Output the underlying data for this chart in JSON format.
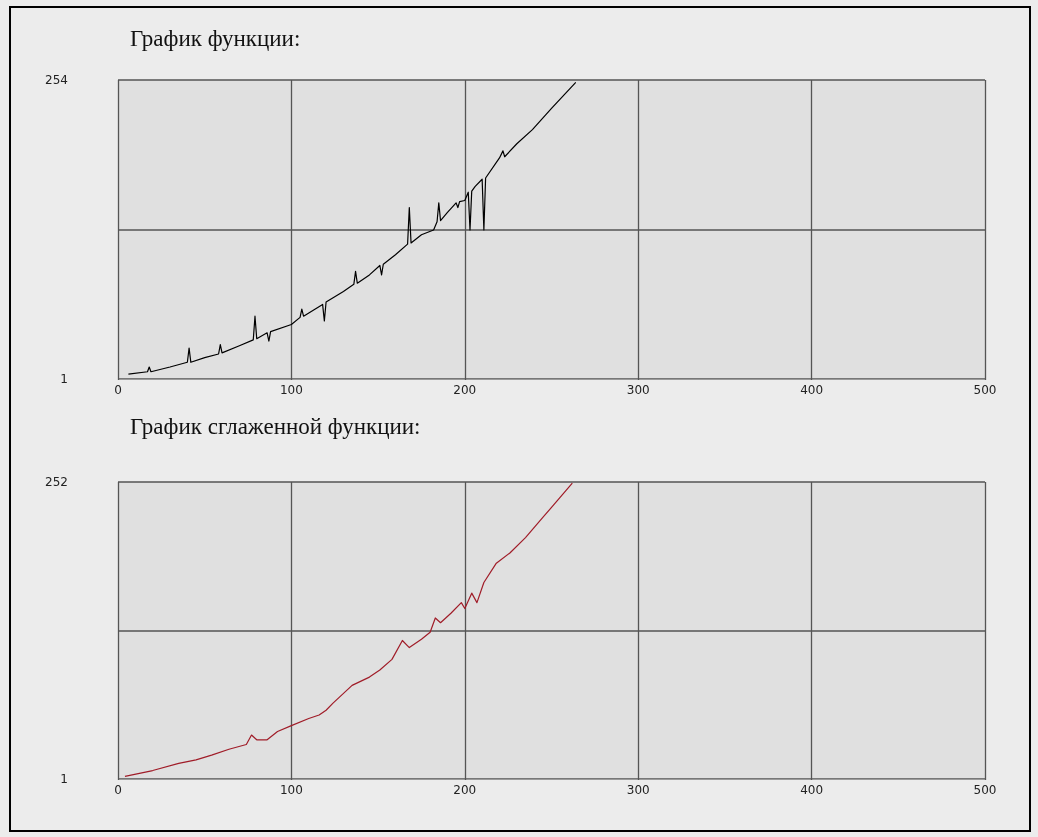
{
  "chart_data": [
    {
      "type": "line",
      "title": "График функции:",
      "x": [
        6,
        17,
        18,
        19,
        30,
        40,
        41,
        42,
        50,
        58,
        59,
        60,
        70,
        78,
        79,
        80,
        86,
        87,
        88,
        100,
        105,
        106,
        107,
        118,
        119,
        120,
        130,
        136,
        137,
        138,
        145,
        151,
        152,
        153,
        160,
        167,
        168,
        169,
        175,
        182,
        184,
        185,
        186,
        190,
        195,
        196,
        197,
        200,
        202,
        203,
        204,
        206,
        210,
        211,
        212,
        220,
        222,
        223,
        230,
        239,
        250,
        264
      ],
      "series": [
        {
          "color": "#000000",
          "values": [
            5,
            7,
            11,
            7,
            11,
            15,
            27,
            15,
            19,
            22,
            30,
            23,
            29,
            34,
            54,
            35,
            40,
            33,
            41,
            47,
            53,
            60,
            54,
            64,
            50,
            66,
            75,
            81,
            92,
            82,
            89,
            97,
            89,
            98,
            106,
            115,
            146,
            116,
            123,
            127,
            134,
            150,
            135,
            142,
            150,
            146,
            151,
            152,
            159,
            127,
            160,
            164,
            170,
            127,
            171,
            188,
            194,
            189,
            200,
            212,
            230,
            252
          ]
        }
      ],
      "xlim": [
        0,
        500
      ],
      "xticks": [
        0,
        100,
        200,
        300,
        400,
        500
      ],
      "ylim": [
        0,
        254
      ],
      "yticks": [
        1,
        {
          "value": 127,
          "label": null
        },
        254
      ],
      "grid": true
    },
    {
      "type": "line",
      "title": "График сглаженной функции:",
      "x": [
        4,
        20,
        35,
        45,
        54,
        64,
        74,
        77,
        80,
        86,
        92,
        100,
        110,
        116,
        120,
        124,
        135,
        145,
        151,
        158,
        164,
        168,
        175,
        180,
        183,
        186,
        192,
        198,
        200,
        204,
        207,
        211,
        218,
        226,
        235,
        245,
        262
      ],
      "series": [
        {
          "color": "#a01c28",
          "values": [
            3,
            8,
            14,
            17,
            21,
            26,
            30,
            38,
            34,
            34,
            41,
            46,
            52,
            55,
            59,
            65,
            80,
            87,
            93,
            102,
            118,
            112,
            119,
            125,
            137,
            133,
            141,
            150,
            145,
            158,
            150,
            167,
            183,
            192,
            205,
            222,
            251
          ]
        }
      ],
      "xlim": [
        0,
        500
      ],
      "xticks": [
        0,
        100,
        200,
        300,
        400,
        500
      ],
      "ylim": [
        0,
        252
      ],
      "yticks": [
        1,
        {
          "value": 126,
          "label": null
        },
        252
      ],
      "grid": true
    }
  ]
}
